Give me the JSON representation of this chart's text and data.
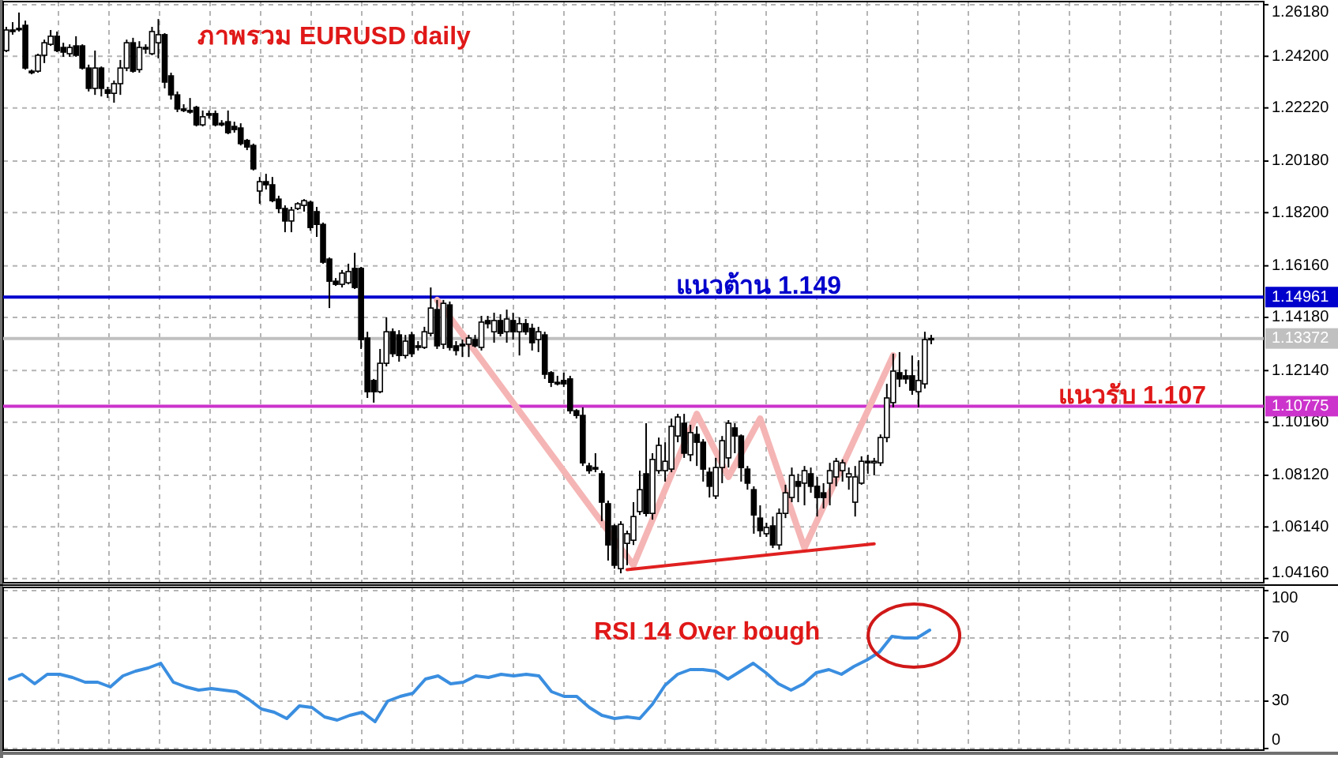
{
  "chart_data": [
    {
      "type": "candlestick",
      "title": "ภาพรวม EURUSD daily",
      "categories": [
        null,
        null,
        null,
        null,
        null,
        null,
        null,
        null,
        null,
        null,
        null,
        null,
        null,
        null,
        null,
        null,
        null,
        null,
        null,
        null,
        null,
        null,
        null,
        null,
        null,
        null,
        null,
        null,
        null,
        null,
        null,
        null,
        null,
        null,
        null,
        null,
        null,
        null,
        null,
        null,
        null,
        null,
        null,
        null,
        null,
        null,
        null,
        null,
        null,
        null,
        null,
        null,
        null,
        null,
        null,
        null,
        null,
        null,
        null,
        null,
        null,
        null,
        null,
        null,
        null,
        null,
        null,
        null,
        null,
        null,
        null,
        null,
        null,
        null,
        null,
        null,
        null,
        null,
        null,
        null,
        null,
        null,
        null,
        null,
        null,
        null,
        null,
        null,
        null,
        null,
        null,
        null,
        null,
        null,
        null,
        null,
        null,
        null,
        null,
        null,
        null,
        null,
        null,
        null,
        null,
        null,
        null,
        null,
        null,
        null,
        null,
        null,
        null,
        null,
        null,
        null,
        null,
        null,
        null,
        null,
        null,
        null,
        null,
        null,
        null,
        null,
        null,
        null,
        null,
        null,
        null,
        null,
        null,
        null,
        null,
        null,
        null,
        null,
        null,
        null,
        null,
        null,
        null,
        null,
        null,
        null,
        null,
        null,
        null,
        null,
        null,
        null,
        null,
        null,
        null,
        null,
        null,
        null,
        null,
        null,
        null,
        null,
        null,
        null,
        null,
        null,
        null,
        null,
        null,
        null,
        null,
        null,
        null,
        null,
        null,
        null,
        null,
        null,
        null,
        null,
        null,
        null,
        null,
        null,
        null,
        null,
        null,
        null,
        null,
        null,
        null,
        null,
        null,
        null,
        null,
        null,
        null,
        null,
        null
      ],
      "ohlc": [
        [
          1.2442,
          1.2533,
          1.2436,
          1.2521
        ],
        [
          1.2521,
          1.2551,
          1.2503,
          1.2515
        ],
        [
          1.2527,
          1.2588,
          1.2515,
          1.2527
        ],
        [
          1.2539,
          1.2557,
          1.2369,
          1.2375
        ],
        [
          1.2363,
          1.2369,
          1.2351,
          1.2357
        ],
        [
          1.2363,
          1.243,
          1.2357,
          1.2424
        ],
        [
          1.2424,
          1.2484,
          1.2394,
          1.2472
        ],
        [
          1.2466,
          1.2521,
          1.246,
          1.2497
        ],
        [
          1.2497,
          1.2515,
          1.2436,
          1.2442
        ],
        [
          1.2454,
          1.2472,
          1.2418,
          1.2436
        ],
        [
          1.243,
          1.2466,
          1.2418,
          1.2454
        ],
        [
          1.246,
          1.2497,
          1.2418,
          1.2424
        ],
        [
          1.246,
          1.2466,
          1.2369,
          1.2375
        ],
        [
          1.2375,
          1.2388,
          1.2285,
          1.2297
        ],
        [
          1.2297,
          1.2442,
          1.2272,
          1.2375
        ],
        [
          1.2375,
          1.2381,
          1.2266,
          1.2297
        ],
        [
          1.2291,
          1.2303,
          1.226,
          1.2278
        ],
        [
          1.2278,
          1.2327,
          1.2242,
          1.2315
        ],
        [
          1.2315,
          1.2406,
          1.2272,
          1.2375
        ],
        [
          1.2375,
          1.2484,
          1.2363,
          1.2472
        ],
        [
          1.2472,
          1.2491,
          1.2357,
          1.2363
        ],
        [
          1.2369,
          1.2478,
          1.2357,
          1.2454
        ],
        [
          1.2454,
          1.2466,
          1.243,
          1.2448
        ],
        [
          1.243,
          1.2533,
          1.2424,
          1.2515
        ],
        [
          1.2472,
          1.2563,
          1.2412,
          1.2503
        ],
        [
          1.2503,
          1.2509,
          1.2297,
          1.2321
        ],
        [
          1.2345,
          1.2357,
          1.2254,
          1.2272
        ],
        [
          1.2272,
          1.2285,
          1.2206,
          1.2218
        ],
        [
          1.2218,
          1.2236,
          1.2206,
          1.2212
        ],
        [
          1.2212,
          1.226,
          1.22,
          1.2206
        ],
        [
          1.2224,
          1.223,
          1.2151,
          1.2157
        ],
        [
          1.2157,
          1.2212,
          1.2151,
          1.2188
        ],
        [
          1.22,
          1.2212,
          1.2181,
          1.2194
        ],
        [
          1.22,
          1.2212,
          1.2151,
          1.2157
        ],
        [
          1.2163,
          1.2175,
          1.2151,
          1.2157
        ],
        [
          1.2169,
          1.2212,
          1.2121,
          1.2127
        ],
        [
          1.2151,
          1.2169,
          1.2127,
          1.2139
        ],
        [
          1.2145,
          1.2163,
          1.2078,
          1.2085
        ],
        [
          1.2097,
          1.2103,
          1.206,
          1.2072
        ],
        [
          1.2078,
          1.2085,
          1.1982,
          1.1988
        ],
        [
          1.1903,
          1.1957,
          1.1854,
          1.1939
        ],
        [
          1.1939,
          1.1969,
          1.1909,
          1.1927
        ],
        [
          1.1927,
          1.1957,
          1.186,
          1.1866
        ],
        [
          1.1872,
          1.1885,
          1.1818,
          1.1836
        ],
        [
          1.1836,
          1.1848,
          1.1745,
          1.1788
        ],
        [
          1.1788,
          1.1842,
          1.1745,
          1.183
        ],
        [
          1.1836,
          1.186,
          1.183,
          1.1854
        ],
        [
          1.1848,
          1.1872,
          1.1824,
          1.1866
        ],
        [
          1.186,
          1.1866,
          1.1751,
          1.1763
        ],
        [
          1.1824,
          1.1842,
          1.1727,
          1.1775
        ],
        [
          1.1775,
          1.1782,
          1.1624,
          1.163
        ],
        [
          1.1642,
          1.1648,
          1.1454,
          1.1557
        ],
        [
          1.1557,
          1.1569,
          1.1539,
          1.1545
        ],
        [
          1.1545,
          1.16,
          1.1533,
          1.1588
        ],
        [
          1.1551,
          1.1624,
          1.1545,
          1.1594
        ],
        [
          1.1606,
          1.1666,
          1.1527,
          1.1533
        ],
        [
          1.1606,
          1.1612,
          1.1297,
          1.1333
        ],
        [
          1.1339,
          1.1363,
          1.1109,
          1.1133
        ],
        [
          1.1176,
          1.1182,
          1.1091,
          1.1133
        ],
        [
          1.1133,
          1.1297,
          1.1127,
          1.1242
        ],
        [
          1.1242,
          1.1418,
          1.123,
          1.1363
        ],
        [
          1.1363,
          1.1376,
          1.1266,
          1.1279
        ],
        [
          1.1351,
          1.1369,
          1.1248,
          1.1272
        ],
        [
          1.1272,
          1.1351,
          1.126,
          1.1327
        ],
        [
          1.1351,
          1.1363,
          1.1266,
          1.1279
        ],
        [
          1.1309,
          1.1327,
          1.1291,
          1.1303
        ],
        [
          1.1303,
          1.1382,
          1.1297,
          1.1363
        ],
        [
          1.1357,
          1.1533,
          1.1345,
          1.1454
        ],
        [
          1.1448,
          1.1485,
          1.1297,
          1.1309
        ],
        [
          1.1315,
          1.1485,
          1.1297,
          1.1472
        ],
        [
          1.1466,
          1.1479,
          1.1291,
          1.1303
        ],
        [
          1.1309,
          1.1327,
          1.1272,
          1.1291
        ],
        [
          1.1315,
          1.1333,
          1.1266,
          1.1309
        ],
        [
          1.1315,
          1.1351,
          1.1266,
          1.1339
        ],
        [
          1.1333,
          1.1351,
          1.1303,
          1.1309
        ],
        [
          1.1303,
          1.1424,
          1.1291,
          1.14
        ],
        [
          1.1406,
          1.1424,
          1.1376,
          1.1394
        ],
        [
          1.1363,
          1.1436,
          1.1321,
          1.1406
        ],
        [
          1.1406,
          1.143,
          1.1345,
          1.1357
        ],
        [
          1.1363,
          1.1448,
          1.1321,
          1.1412
        ],
        [
          1.1406,
          1.1436,
          1.1333,
          1.1363
        ],
        [
          1.1363,
          1.1418,
          1.1272,
          1.1394
        ],
        [
          1.1394,
          1.1412,
          1.1351,
          1.1363
        ],
        [
          1.1376,
          1.1394,
          1.1291,
          1.1321
        ],
        [
          1.1333,
          1.1382,
          1.1285,
          1.1363
        ],
        [
          1.1351,
          1.1363,
          1.1182,
          1.12
        ],
        [
          1.1206,
          1.1212,
          1.1151,
          1.1169
        ],
        [
          1.1169,
          1.1194,
          1.1157,
          1.1163
        ],
        [
          1.1176,
          1.1206,
          1.1151,
          1.1163
        ],
        [
          1.1182,
          1.1194,
          1.1048,
          1.106
        ],
        [
          1.106,
          1.1066,
          1.103,
          1.1042
        ],
        [
          1.1042,
          1.1073,
          1.0848,
          1.086
        ],
        [
          1.0848,
          1.086,
          1.0818,
          1.083
        ],
        [
          1.0842,
          1.0897,
          1.0824,
          1.0836
        ],
        [
          1.0818,
          1.083,
          1.0636,
          1.0709
        ],
        [
          1.0703,
          1.0715,
          1.0485,
          1.0545
        ],
        [
          1.0618,
          1.0624,
          1.0454,
          1.0467
        ],
        [
          1.0454,
          1.0636,
          1.0436,
          1.0624
        ],
        [
          1.0551,
          1.06,
          1.0467,
          1.0588
        ],
        [
          1.0563,
          1.0709,
          1.0545,
          1.0654
        ],
        [
          1.0673,
          1.083,
          1.066,
          1.0757
        ],
        [
          1.0818,
          1.1012,
          1.0654,
          1.0666
        ],
        [
          1.0666,
          1.0897,
          1.0642,
          1.0873
        ],
        [
          1.083,
          1.0957,
          1.0818,
          1.0927
        ],
        [
          1.083,
          1.0939,
          1.0788,
          1.0866
        ],
        [
          1.0836,
          1.103,
          1.0824,
          1.1
        ],
        [
          1.0963,
          1.1048,
          1.0939,
          1.1036
        ],
        [
          1.1012,
          1.1048,
          1.0879,
          1.0897
        ],
        [
          1.0891,
          1.1006,
          1.0866,
          1.0976
        ],
        [
          1.0969,
          1.1,
          1.0848,
          1.0939
        ],
        [
          1.0939,
          1.0951,
          1.0788,
          1.0836
        ],
        [
          1.0824,
          1.0842,
          1.0727,
          1.077
        ],
        [
          1.0733,
          1.0879,
          1.0721,
          1.0842
        ],
        [
          1.0842,
          1.0963,
          1.0782,
          1.0945
        ],
        [
          1.0879,
          1.1024,
          1.0842,
          1.1012
        ],
        [
          1.0994,
          1.1012,
          1.0897,
          1.0963
        ],
        [
          1.0963,
          1.0969,
          1.0788,
          1.0842
        ],
        [
          1.0836,
          1.0848,
          1.0757,
          1.0782
        ],
        [
          1.0757,
          1.077,
          1.0588,
          1.066
        ],
        [
          1.0648,
          1.0697,
          1.0576,
          1.06
        ],
        [
          1.0588,
          1.063,
          1.0576,
          1.0612
        ],
        [
          1.0618,
          1.0654,
          1.0533,
          1.0545
        ],
        [
          1.0545,
          1.0685,
          1.0527,
          1.0666
        ],
        [
          1.0666,
          1.0776,
          1.0648,
          1.0745
        ],
        [
          1.0727,
          1.0842,
          1.0709,
          1.0812
        ],
        [
          1.0788,
          1.0818,
          1.0709,
          1.077
        ],
        [
          1.0782,
          1.0848,
          1.0697,
          1.083
        ],
        [
          1.0818,
          1.0842,
          1.0745,
          1.077
        ],
        [
          1.077,
          1.0806,
          1.0654,
          1.0727
        ],
        [
          1.0745,
          1.0782,
          1.0685,
          1.0727
        ],
        [
          1.0782,
          1.086,
          1.0697,
          1.083
        ],
        [
          1.0806,
          1.0879,
          1.077,
          1.0866
        ],
        [
          1.083,
          1.0873,
          1.0788,
          1.086
        ],
        [
          1.0806,
          1.0842,
          1.0757,
          1.0818
        ],
        [
          1.0709,
          1.0848,
          1.0654,
          1.0806
        ],
        [
          1.0782,
          1.0885,
          1.0776,
          1.0866
        ],
        [
          1.0866,
          1.0891,
          1.0818,
          1.086
        ],
        [
          1.086,
          1.0879,
          1.0812,
          1.0866
        ],
        [
          1.086,
          1.0969,
          1.0848,
          1.0957
        ],
        [
          1.0957,
          1.1163,
          1.0939,
          1.1109
        ],
        [
          1.1091,
          1.1279,
          1.1073,
          1.1212
        ],
        [
          1.1206,
          1.1285,
          1.1151,
          1.1182
        ],
        [
          1.1194,
          1.1218,
          1.1163,
          1.1182
        ],
        [
          1.1194,
          1.1272,
          1.1121,
          1.1139
        ],
        [
          1.1133,
          1.1254,
          1.1073,
          1.1176
        ],
        [
          1.1163,
          1.1363,
          1.1145,
          1.1333
        ],
        [
          1.1333,
          1.1351,
          1.1315,
          1.1337
        ],
        null,
        null,
        null,
        null,
        null,
        null,
        null,
        null,
        null,
        null,
        null,
        null,
        null,
        null,
        null,
        null,
        null,
        null,
        null,
        null,
        null,
        null,
        null,
        null,
        null,
        null,
        null,
        null,
        null,
        null,
        null,
        null,
        null,
        null,
        null,
        null,
        null,
        null,
        null,
        null,
        null,
        null,
        null,
        null,
        null,
        null,
        null,
        null,
        null,
        null,
        null,
        null
      ],
      "series": [
        {
          "type": "line",
          "color": "#f5b5b5",
          "values": [
            null,
            null,
            null,
            null,
            null,
            null,
            null,
            null,
            null,
            null,
            null,
            null,
            null,
            null,
            null,
            null,
            null,
            null,
            null,
            null,
            null,
            null,
            null,
            null,
            null,
            null,
            null,
            null,
            null,
            null,
            null,
            null,
            null,
            null,
            null,
            null,
            null,
            null,
            null,
            null,
            null,
            null,
            null,
            null,
            null,
            null,
            null,
            null,
            null,
            null,
            null,
            null,
            null,
            null,
            null,
            null,
            null,
            null,
            null,
            null,
            null,
            null,
            null,
            null,
            null,
            null,
            null,
            null,
            1.1485,
            null,
            null,
            null,
            null,
            null,
            null,
            null,
            null,
            null,
            null,
            null,
            null,
            null,
            null,
            null,
            null,
            null,
            null,
            null,
            null,
            null,
            null,
            null,
            null,
            null,
            null,
            null,
            null,
            null,
            null,
            1.0467,
            null,
            null,
            null,
            null,
            null,
            null,
            null,
            null,
            null,
            1.1048,
            null,
            null,
            null,
            null,
            1.0806,
            null,
            null,
            null,
            null,
            1.103,
            null,
            null,
            null,
            null,
            null,
            null,
            1.0533,
            null,
            null,
            null,
            null,
            null,
            null,
            null,
            null,
            null,
            null,
            null,
            null,
            null,
            1.1272,
            null,
            null,
            null,
            null,
            null,
            null,
            null,
            null,
            null,
            null,
            null,
            null,
            null,
            null,
            null,
            null,
            null,
            null,
            null,
            null,
            null,
            null,
            null,
            null,
            null,
            null,
            null,
            null,
            null,
            null,
            null,
            null,
            null,
            null,
            null,
            null,
            null,
            null,
            null,
            null,
            null,
            null,
            null,
            null,
            null,
            null,
            null,
            null,
            null,
            null,
            null,
            null,
            null,
            null,
            null,
            null,
            null,
            null
          ]
        },
        {
          "type": "line",
          "color": "#e02020",
          "values": [
            null,
            null,
            null,
            null,
            null,
            null,
            null,
            null,
            null,
            null,
            null,
            null,
            null,
            null,
            null,
            null,
            null,
            null,
            null,
            null,
            null,
            null,
            null,
            null,
            null,
            null,
            null,
            null,
            null,
            null,
            null,
            null,
            null,
            null,
            null,
            null,
            null,
            null,
            null,
            null,
            null,
            null,
            null,
            null,
            null,
            null,
            null,
            null,
            null,
            null,
            null,
            null,
            null,
            null,
            null,
            null,
            null,
            null,
            null,
            null,
            null,
            null,
            null,
            null,
            null,
            null,
            null,
            null,
            null,
            null,
            null,
            null,
            null,
            null,
            null,
            null,
            null,
            null,
            null,
            null,
            null,
            null,
            null,
            null,
            null,
            null,
            null,
            null,
            null,
            null,
            null,
            null,
            null,
            null,
            null,
            null,
            null,
            null,
            1.045,
            null,
            null,
            null,
            null,
            null,
            null,
            null,
            null,
            null,
            null,
            null,
            null,
            null,
            null,
            null,
            null,
            null,
            null,
            null,
            null,
            null,
            null,
            null,
            null,
            null,
            null,
            null,
            null,
            null,
            null,
            null,
            null,
            null,
            null,
            null,
            null,
            null,
            null,
            1.0549,
            null,
            null,
            null,
            null,
            null,
            null,
            null,
            null,
            null,
            null,
            null,
            null,
            null,
            null,
            null,
            null,
            null,
            null,
            null,
            null,
            null,
            null,
            null,
            null,
            null,
            null,
            null,
            null,
            null,
            null,
            null,
            null,
            null,
            null,
            null,
            null,
            null,
            null,
            null,
            null,
            null,
            null,
            null,
            null,
            null,
            null,
            null,
            null,
            null,
            null,
            null,
            null,
            null,
            null,
            null,
            null,
            null,
            null,
            null,
            null,
            null
          ]
        }
      ],
      "ylim": [
        1.04,
        1.263
      ],
      "yticks": [
        {
          "value": 1.2618,
          "label": "1.26180"
        },
        {
          "value": 1.242,
          "label": "1.24200"
        },
        {
          "value": 1.2222,
          "label": "1.22220"
        },
        {
          "value": 1.2018,
          "label": "1.20180"
        },
        {
          "value": 1.182,
          "label": "1.18200"
        },
        {
          "value": 1.1616,
          "label": "1.16160"
        },
        {
          "value": 1.1418,
          "label": "1.14180"
        },
        {
          "value": 1.1214,
          "label": "1.12140"
        },
        {
          "value": 1.1016,
          "label": "1.10160"
        },
        {
          "value": 1.0812,
          "label": "1.08120"
        },
        {
          "value": 1.0614,
          "label": "1.06140"
        },
        {
          "value": 1.0416,
          "label": "1.04160"
        }
      ],
      "ref_lines": [
        {
          "axis": "y",
          "value": 1.14961,
          "label": "1.14961",
          "color": "#0000cc"
        },
        {
          "axis": "y",
          "value": 1.13372,
          "label": "1.13372",
          "color": "#c0c0c0"
        },
        {
          "axis": "y",
          "value": 1.10775,
          "label": "1.10775",
          "color": "#cc33cc"
        }
      ],
      "annotations": [
        {
          "text": "แนวต้าน 1.149",
          "y": 1.149
        },
        {
          "text": "แนวรับ 1.107",
          "y": 1.107
        }
      ],
      "grid": true,
      "tick_labels": "y"
    },
    {
      "type": "line",
      "categories": [
        null,
        null,
        null,
        null,
        null,
        null,
        null,
        null,
        null,
        null,
        null,
        null,
        null,
        null,
        null,
        null,
        null,
        null,
        null,
        null,
        null,
        null,
        null,
        null,
        null,
        null,
        null,
        null,
        null,
        null,
        null,
        null,
        null,
        null,
        null,
        null,
        null,
        null,
        null,
        null,
        null,
        null,
        null,
        null,
        null,
        null,
        null,
        null,
        null,
        null,
        null,
        null,
        null,
        null,
        null,
        null,
        null,
        null,
        null,
        null,
        null,
        null,
        null,
        null,
        null,
        null,
        null,
        null,
        null,
        null,
        null,
        null,
        null,
        null,
        null,
        null,
        null,
        null,
        null,
        null,
        null,
        null,
        null,
        null,
        null,
        null,
        null,
        null,
        null,
        null,
        null,
        null,
        null,
        null,
        null,
        null,
        null,
        null,
        null,
        null
      ],
      "series": [
        {
          "color": "#3a8ee0",
          "values": [
            44,
            47,
            41,
            47,
            47,
            45,
            42,
            42,
            39,
            46,
            49,
            51,
            54,
            42,
            39,
            37,
            38,
            37,
            36,
            31,
            25,
            23,
            19,
            27,
            26,
            20,
            18,
            21,
            23,
            17,
            30,
            33,
            35,
            44,
            46,
            41,
            42,
            46,
            45,
            47,
            46,
            47,
            46,
            36,
            33,
            33,
            26,
            21,
            19,
            20,
            19,
            28,
            40,
            47,
            50,
            50,
            49,
            44,
            49,
            54,
            48,
            41,
            37,
            41,
            48,
            50,
            47,
            52,
            56,
            61,
            71,
            70,
            70,
            75,
            null,
            null,
            null,
            null,
            null,
            null,
            null,
            null,
            null,
            null,
            null,
            null,
            null,
            null,
            null,
            null,
            null,
            null,
            null,
            null,
            null,
            null,
            null,
            null,
            null,
            null
          ]
        }
      ],
      "ylim": [
        -1,
        102
      ],
      "yticks": [
        0,
        30,
        70,
        100
      ],
      "annotations": [
        "RSI 14 Over bough"
      ],
      "grid": true,
      "tick_labels": "y"
    }
  ]
}
